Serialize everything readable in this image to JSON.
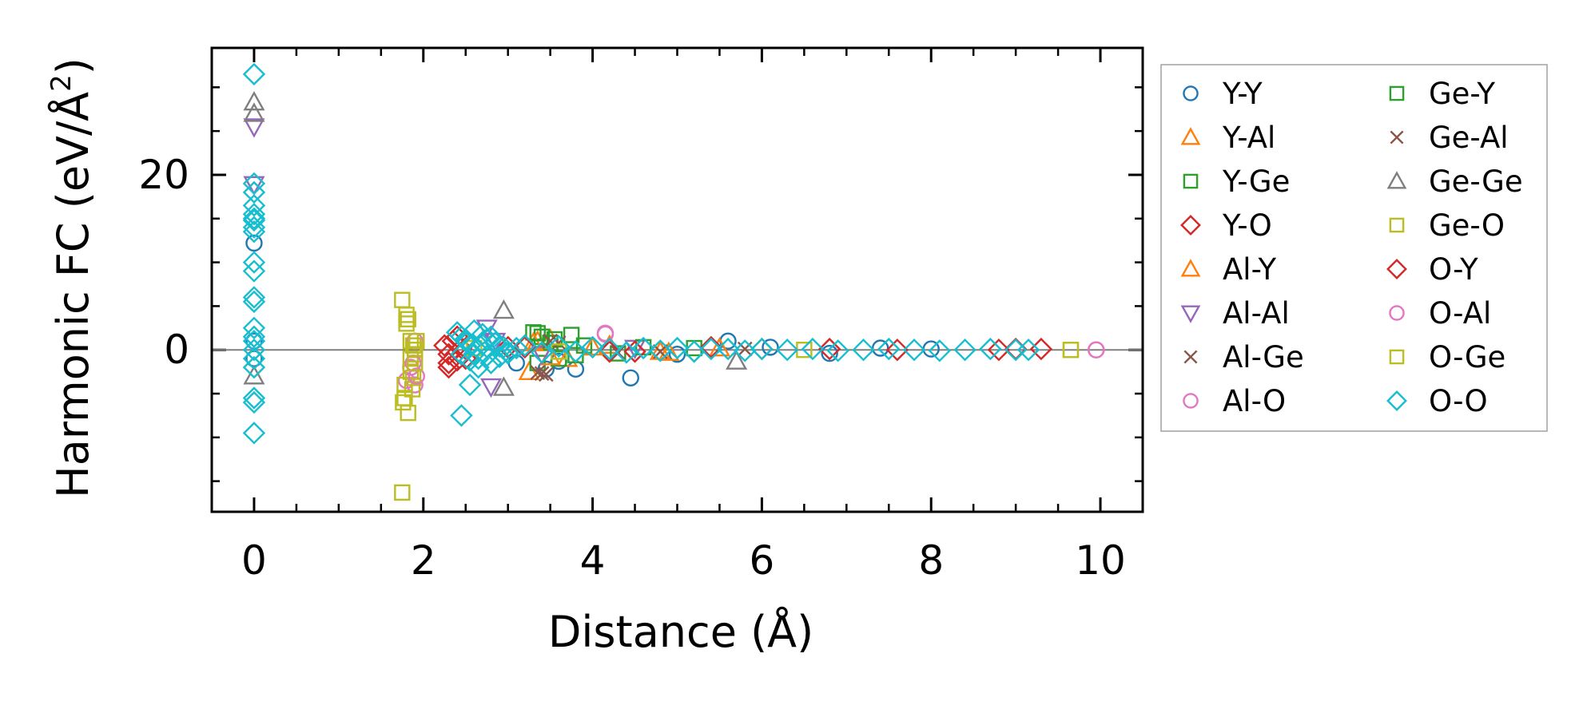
{
  "chart_data": {
    "type": "scatter",
    "title": "",
    "xlabel": "Distance (Å)",
    "ylabel_main": "Harmonic FC (eV/Å",
    "ylabel_sup": "2",
    "ylabel_tail": ")",
    "xlim": [
      -0.5,
      10.5
    ],
    "ylim": [
      -18.5,
      34.5
    ],
    "xticks": [
      0,
      2,
      4,
      6,
      8,
      10
    ],
    "xtick_labels": [
      "0",
      "2",
      "4",
      "6",
      "8",
      "10"
    ],
    "xticks_minor": [
      0.5,
      1,
      1.5,
      2.5,
      3,
      3.5,
      4.5,
      5,
      5.5,
      6.5,
      7,
      7.5,
      8.5,
      9,
      9.5
    ],
    "yticks": [
      0,
      20
    ],
    "ytick_labels": [
      "0",
      "20"
    ],
    "yticks_minor": [
      -15,
      -10,
      -5,
      5,
      10,
      15,
      25,
      30
    ],
    "reference_line_y": 0,
    "legend_position": "outside-right",
    "series": [
      {
        "name": "Y-Y",
        "marker": "circle",
        "color": "#1f77b4",
        "x": [
          0,
          0,
          0,
          3.1,
          3.45,
          3.6,
          3.8,
          4.45,
          5.0,
          5.6,
          6.1,
          6.8,
          7.4,
          8.0
        ],
        "y": [
          12.2,
          1.0,
          -1.0,
          -1.5,
          -2.2,
          -1.3,
          -2.2,
          -3.2,
          -0.5,
          1.0,
          0.3,
          -0.4,
          0.2,
          0.1
        ]
      },
      {
        "name": "Y-Al",
        "marker": "triangle-up",
        "color": "#ff7f0e",
        "x": [
          3.25,
          3.35,
          3.5,
          3.7,
          4.2,
          4.9,
          5.5
        ],
        "y": [
          -2.5,
          1.0,
          1.2,
          -1.0,
          0.5,
          -0.3,
          0.2
        ]
      },
      {
        "name": "Y-Ge",
        "marker": "square",
        "color": "#2ca02c",
        "x": [
          3.3,
          3.35,
          3.4,
          3.5,
          3.6,
          3.75,
          3.9,
          4.3,
          5.2
        ],
        "y": [
          2.0,
          -1.5,
          1.5,
          0.8,
          -1.0,
          1.7,
          0.5,
          -0.4,
          0.2
        ]
      },
      {
        "name": "Y-O",
        "marker": "diamond",
        "color": "#d62728",
        "x": [
          2.25,
          2.3,
          2.35,
          2.4,
          2.45,
          2.3,
          3.0,
          4.2,
          5.4,
          6.8,
          8.8,
          9.3
        ],
        "y": [
          0.5,
          -0.5,
          1.0,
          -1.2,
          0.2,
          -2.0,
          0.3,
          -0.2,
          0.3,
          0.1,
          0.0,
          0.1
        ]
      },
      {
        "name": "Al-Y",
        "marker": "triangle-up",
        "color": "#ff7f0e",
        "x": [
          3.3,
          3.5,
          4.0,
          4.8
        ],
        "y": [
          0.8,
          -0.8,
          0.3,
          -0.2
        ]
      },
      {
        "name": "Al-Al",
        "marker": "triangle-down",
        "color": "#9467bd",
        "x": [
          0,
          0,
          2.75,
          2.8,
          2.85,
          3.4,
          4.5
        ],
        "y": [
          25.5,
          18.9,
          2.5,
          -4.2,
          1.0,
          -0.5,
          0.2
        ]
      },
      {
        "name": "Al-Ge",
        "marker": "x",
        "color": "#8c564b",
        "x": [
          3.35,
          3.45,
          3.6,
          4.3,
          5.8
        ],
        "y": [
          -2.6,
          -2.8,
          0.8,
          -0.3,
          0.1
        ]
      },
      {
        "name": "Al-O",
        "marker": "circle",
        "color": "#e377c2",
        "x": [
          1.8,
          1.85,
          1.9,
          1.9,
          4.15,
          9.95
        ],
        "y": [
          -3.5,
          -2.0,
          1.0,
          -4.0,
          1.8,
          0.0
        ]
      },
      {
        "name": "Ge-Y",
        "marker": "square",
        "color": "#2ca02c",
        "x": [
          3.35,
          3.55,
          3.8,
          4.6
        ],
        "y": [
          1.9,
          1.2,
          -0.6,
          0.3
        ]
      },
      {
        "name": "Ge-Al",
        "marker": "x",
        "color": "#8c564b",
        "x": [
          3.4,
          3.5,
          4.8
        ],
        "y": [
          -2.7,
          1.0,
          -0.2
        ]
      },
      {
        "name": "Ge-Ge",
        "marker": "triangle-up",
        "color": "#7f7f7f",
        "x": [
          0,
          0,
          0,
          2.95,
          2.95,
          5.7
        ],
        "y": [
          28.3,
          27.0,
          -3.0,
          4.5,
          -4.3,
          -1.3
        ]
      },
      {
        "name": "Ge-O",
        "marker": "square",
        "color": "#bcbd22",
        "x": [
          1.75,
          1.75,
          1.76,
          1.78,
          1.8,
          1.8,
          1.82,
          1.85,
          1.85,
          1.85,
          1.87,
          1.9,
          1.9,
          1.92,
          1.88,
          9.65
        ],
        "y": [
          -16.3,
          5.7,
          -6.0,
          -4.0,
          4.0,
          3.0,
          -7.2,
          -1.0,
          1.0,
          -2.5,
          -4.5,
          0.0,
          -0.5,
          1.0,
          -3.2,
          0.0
        ]
      },
      {
        "name": "O-Y",
        "marker": "diamond",
        "color": "#d62728",
        "x": [
          2.3,
          2.4,
          2.5,
          3.2,
          4.5,
          6.0,
          7.6,
          9.0
        ],
        "y": [
          -1.5,
          1.5,
          -1.0,
          0.3,
          -0.2,
          0.1,
          0.0,
          0.1
        ]
      },
      {
        "name": "O-Al",
        "marker": "circle",
        "color": "#e377c2",
        "x": [
          1.88,
          1.92,
          4.15,
          9.95
        ],
        "y": [
          -1.5,
          -3.0,
          1.9,
          0.0
        ]
      },
      {
        "name": "O-Ge",
        "marker": "square",
        "color": "#bcbd22",
        "x": [
          1.78,
          1.82,
          1.88,
          1.9,
          2.6,
          3.6,
          6.5,
          9.65
        ],
        "y": [
          -5.5,
          3.5,
          0.5,
          -1.5,
          0.2,
          -0.2,
          0.0,
          0.0
        ]
      },
      {
        "name": "O-O",
        "marker": "diamond",
        "color": "#17becf",
        "x": [
          0,
          0,
          0,
          0,
          0,
          0,
          0,
          0,
          0,
          0,
          0,
          0,
          0,
          0,
          0,
          0,
          0,
          0,
          0,
          0,
          0,
          0,
          2.4,
          2.45,
          2.5,
          2.55,
          2.6,
          2.65,
          2.7,
          2.75,
          2.8,
          2.85,
          2.9,
          2.95,
          3.0,
          2.45,
          2.5,
          2.55,
          2.6,
          2.65,
          2.7,
          2.75,
          2.8,
          2.9,
          3.0,
          3.1,
          3.2,
          3.4,
          3.6,
          3.8,
          4.0,
          4.2,
          4.4,
          4.6,
          4.8,
          5.0,
          5.2,
          5.4,
          5.6,
          5.8,
          6.0,
          6.3,
          6.6,
          6.9,
          7.2,
          7.5,
          7.8,
          8.1,
          8.4,
          8.7,
          9.0,
          9.15,
          2.45,
          2.55
        ],
        "y": [
          31.5,
          19.0,
          18.0,
          16.5,
          15.5,
          15.0,
          14.0,
          13.5,
          10.0,
          9.0,
          6.0,
          5.5,
          2.5,
          1.5,
          1.0,
          0.0,
          -1.0,
          -2.0,
          -5.5,
          -6.0,
          -9.5,
          14.8,
          2.0,
          1.5,
          1.0,
          0.5,
          -0.5,
          -1.0,
          1.8,
          1.2,
          -1.5,
          0.8,
          -0.8,
          0.3,
          -0.3,
          -0.5,
          1.2,
          -1.2,
          2.2,
          -2.0,
          0.6,
          -0.7,
          1.5,
          0.4,
          -0.4,
          0.2,
          0.5,
          -0.3,
          0.4,
          -0.2,
          0.3,
          0.1,
          -0.3,
          0.2,
          -0.1,
          0.2,
          -0.2,
          0.1,
          0.1,
          -0.1,
          0.1,
          0.0,
          0.1,
          -0.1,
          0.0,
          0.1,
          0.0,
          -0.1,
          0.0,
          0.1,
          0.0,
          0.0,
          -7.5,
          -4.0
        ]
      }
    ]
  }
}
